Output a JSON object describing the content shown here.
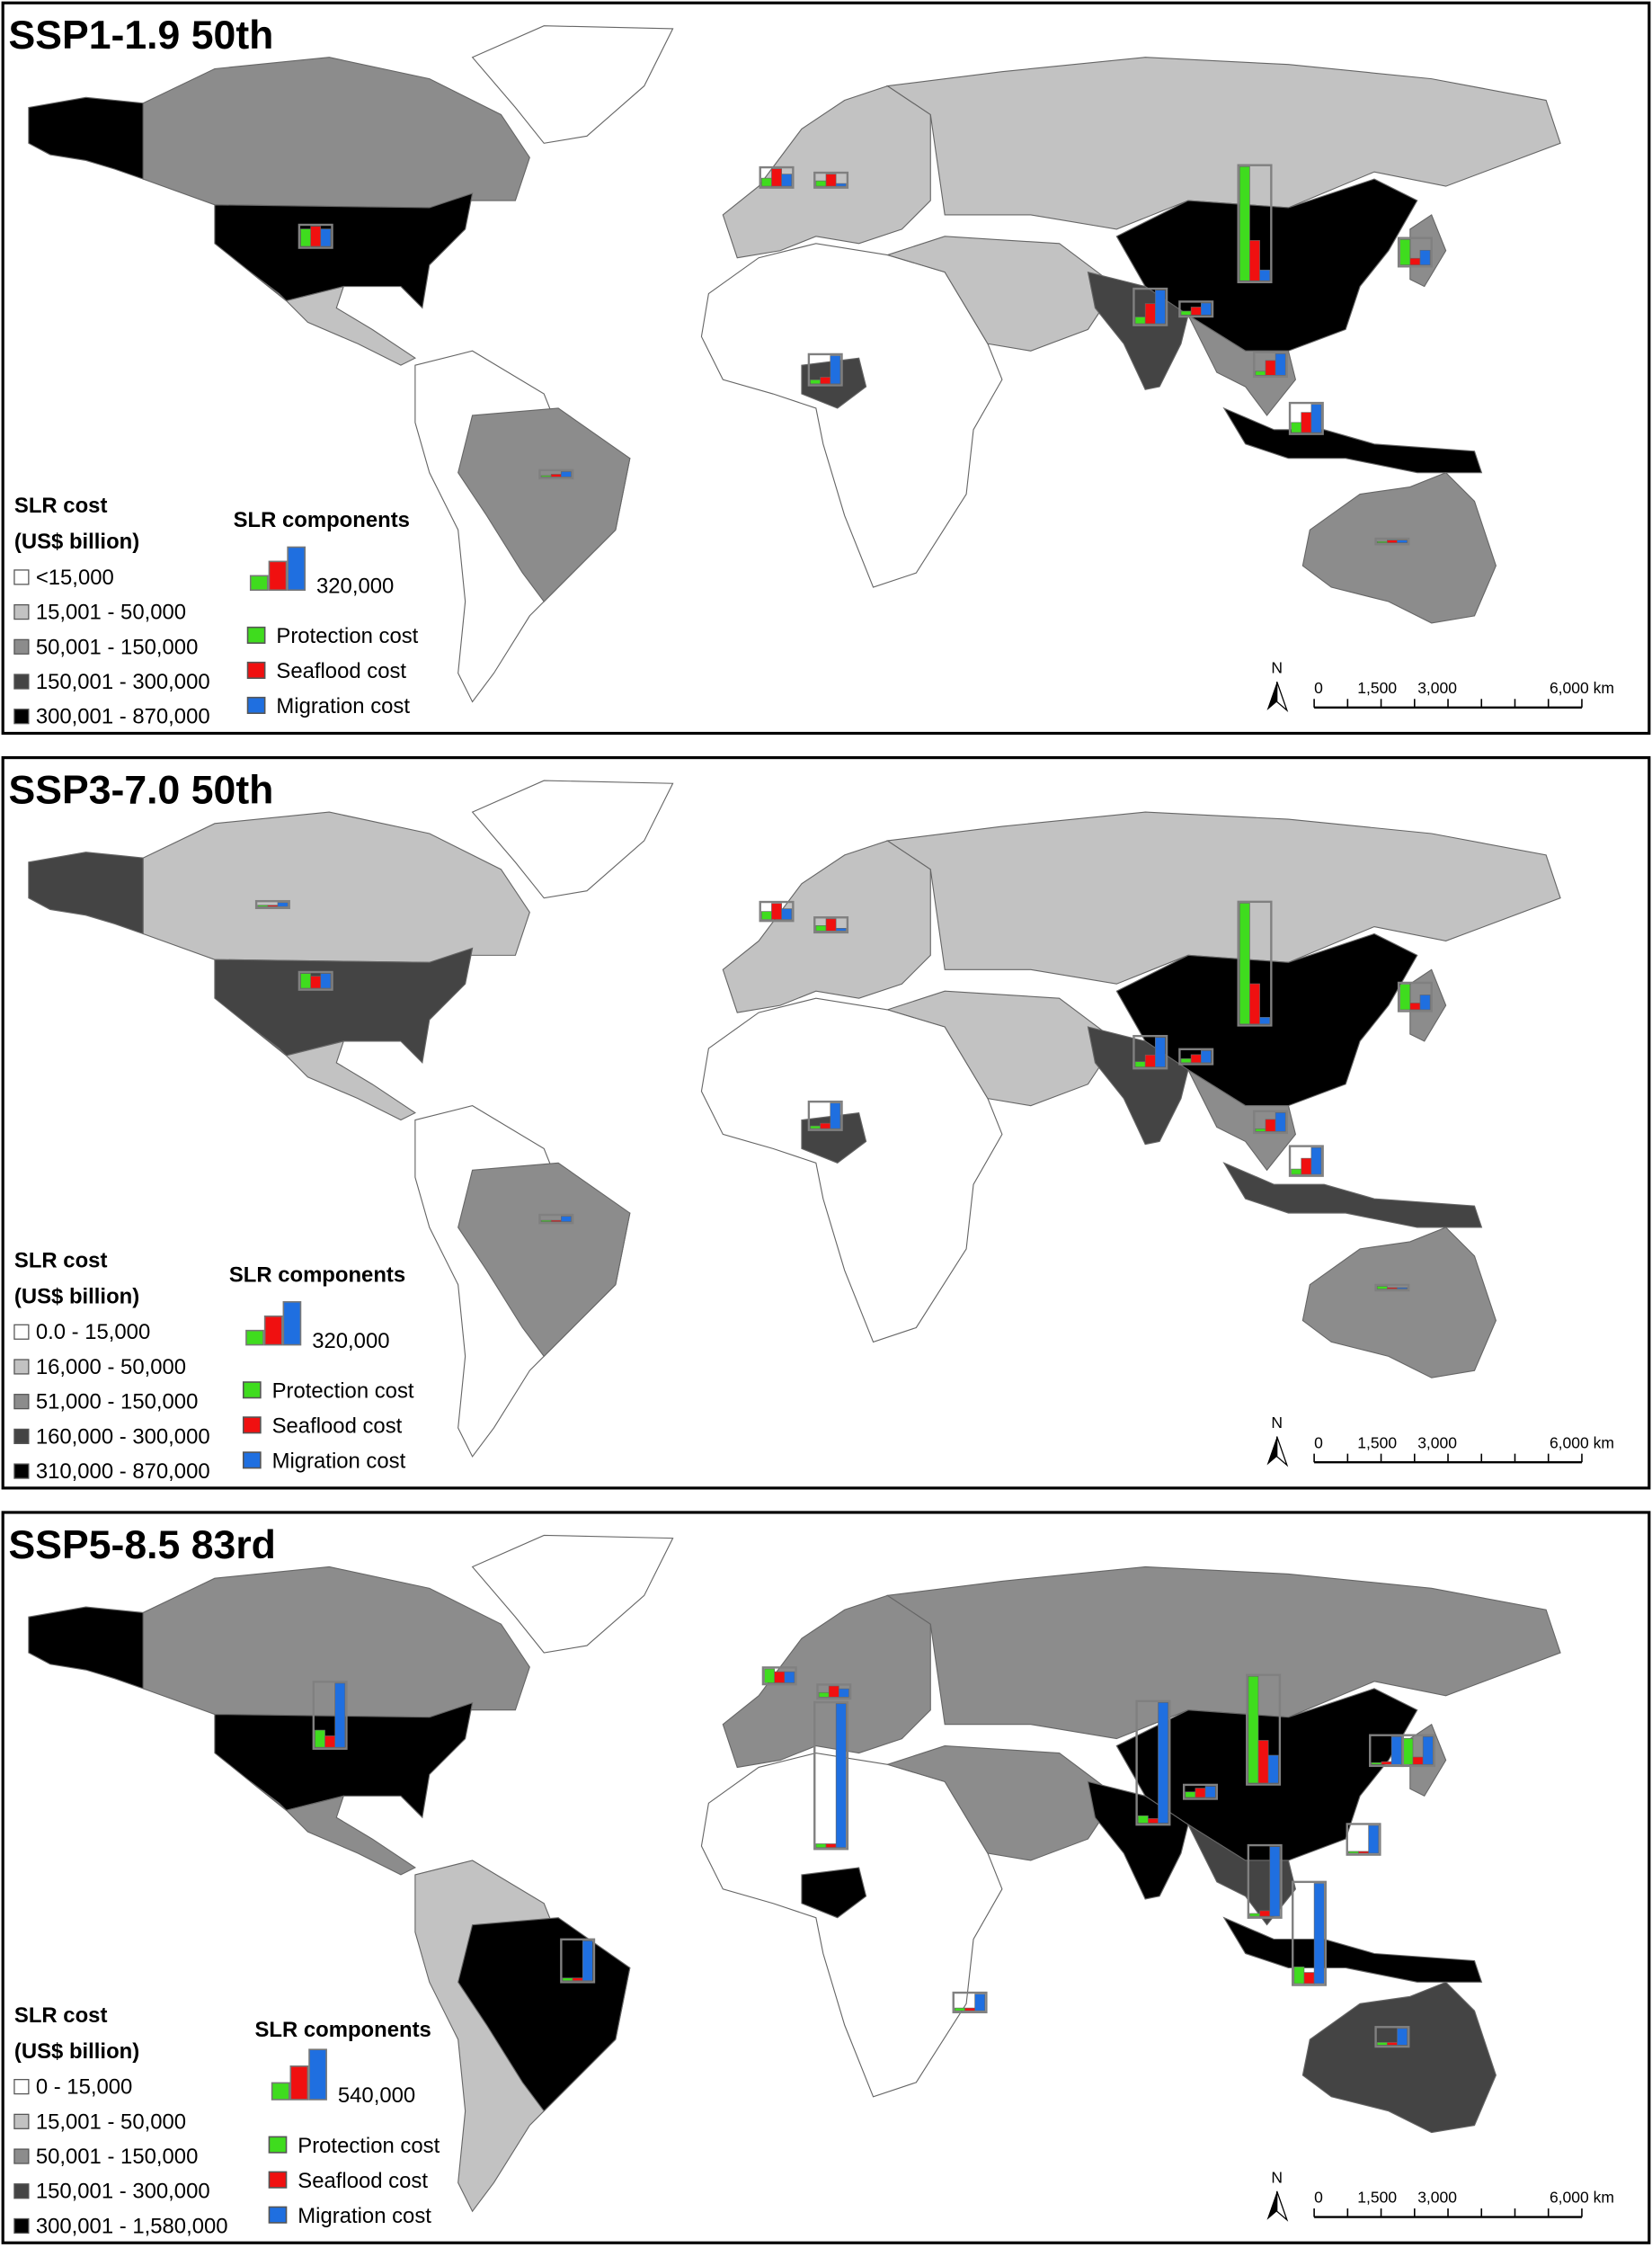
{
  "panels": [
    {
      "title": "SSP1-1.9 50th",
      "legend": {
        "title_line1": "SLR cost",
        "title_line2": "(US$ billion)",
        "classes": [
          {
            "label": "<15,000",
            "color": "#ffffff"
          },
          {
            "label": "15,001 - 50,000",
            "color": "#c2c2c2"
          },
          {
            "label": "50,001 - 150,000",
            "color": "#8c8c8c"
          },
          {
            "label": "150,001 - 300,000",
            "color": "#444444"
          },
          {
            "label": "300,001 - 870,000",
            "color": "#000000"
          }
        ]
      },
      "components": {
        "title": "SLR components",
        "scale": {
          "value": 320000,
          "label": "320,000"
        },
        "items": [
          {
            "label": "Protection cost",
            "color": "#3fdc1e"
          },
          {
            "label": "Seaflood cost",
            "color": "#f01010"
          },
          {
            "label": "Migration cost",
            "color": "#1f6fe0"
          }
        ]
      },
      "scalebar": [
        "0",
        "1,500",
        "3,000",
        "6,000 km"
      ],
      "north": "N",
      "region_classes": [
        4,
        2,
        4,
        1,
        0,
        0,
        2,
        1,
        0,
        3,
        1,
        1,
        4,
        3,
        2,
        4,
        2,
        2
      ],
      "bars": [
        [
          130000,
          150000,
          130000
        ],
        [
          850000,
          300000,
          80000
        ],
        [
          50000,
          150000,
          250000
        ],
        [
          30000,
          50000,
          210000
        ],
        [
          190000,
          50000,
          110000
        ],
        [
          75000,
          150000,
          210000
        ],
        [
          30000,
          110000,
          160000
        ],
        [
          10000,
          20000,
          40000
        ],
        [
          10000,
          20000,
          20000
        ],
        [
          60000,
          130000,
          90000
        ],
        [
          40000,
          90000,
          20000
        ],
        [
          30000,
          60000,
          90000
        ]
      ]
    },
    {
      "title": "SSP3-7.0 50th",
      "legend": {
        "title_line1": "SLR cost",
        "title_line2": "(US$ billion)",
        "classes": [
          {
            "label": "0.0 - 15,000",
            "color": "#ffffff"
          },
          {
            "label": "16,000 - 50,000",
            "color": "#c2c2c2"
          },
          {
            "label": "51,000 - 150,000",
            "color": "#8c8c8c"
          },
          {
            "label": "160,000 - 300,000",
            "color": "#444444"
          },
          {
            "label": "310,000 - 870,000",
            "color": "#000000"
          }
        ]
      },
      "components": {
        "title": "SLR components",
        "scale": {
          "value": 320000,
          "label": "320,000"
        },
        "items": [
          {
            "label": "Protection cost",
            "color": "#3fdc1e"
          },
          {
            "label": "Seaflood cost",
            "color": "#f01010"
          },
          {
            "label": "Migration cost",
            "color": "#1f6fe0"
          }
        ]
      },
      "scalebar": [
        "0",
        "1,500",
        "3,000",
        "6,000 km"
      ],
      "north": "N",
      "region_classes": [
        3,
        1,
        3,
        1,
        0,
        0,
        2,
        1,
        0,
        3,
        1,
        1,
        4,
        3,
        2,
        3,
        2,
        2
      ],
      "bars": [
        [
          110000,
          90000,
          110000
        ],
        [
          900000,
          300000,
          50000
        ],
        [
          40000,
          90000,
          220000
        ],
        [
          20000,
          40000,
          190000
        ],
        [
          190000,
          50000,
          110000
        ],
        [
          40000,
          120000,
          200000
        ],
        [
          20000,
          90000,
          140000
        ],
        [
          10000,
          10000,
          40000
        ],
        [
          20000,
          10000,
          10000
        ],
        [
          60000,
          120000,
          80000
        ],
        [
          40000,
          90000,
          20000
        ],
        [
          30000,
          60000,
          90000
        ],
        [
          10000,
          10000,
          30000
        ]
      ]
    },
    {
      "title": "SSP5-8.5 83rd",
      "legend": {
        "title_line1": "SLR cost",
        "title_line2": "(US$ billion)",
        "classes": [
          {
            "label": "0 - 15,000",
            "color": "#ffffff"
          },
          {
            "label": "15,001 - 50,000",
            "color": "#c2c2c2"
          },
          {
            "label": "50,001 - 150,000",
            "color": "#8c8c8c"
          },
          {
            "label": "150,001 - 300,000",
            "color": "#444444"
          },
          {
            "label": "300,001 - 1,580,000",
            "color": "#000000"
          }
        ]
      },
      "components": {
        "title": "SLR components",
        "scale": {
          "value": 540000,
          "label": "540,000"
        },
        "items": [
          {
            "label": "Protection cost",
            "color": "#3fdc1e"
          },
          {
            "label": "Seaflood cost",
            "color": "#f01010"
          },
          {
            "label": "Migration cost",
            "color": "#1f6fe0"
          }
        ]
      },
      "scalebar": [
        "0",
        "1,500",
        "3,000",
        "6,000 km"
      ],
      "north": "N",
      "region_classes": [
        4,
        2,
        4,
        2,
        0,
        1,
        4,
        2,
        0,
        4,
        2,
        2,
        4,
        4,
        3,
        4,
        3,
        2
      ],
      "bars": [
        [
          185000,
          123000,
          690000
        ],
        [
          1150000,
          460000,
          300000
        ],
        [
          80000,
          50000,
          1300000
        ],
        [
          40000,
          40000,
          1550000
        ],
        [
          280000,
          80000,
          300000
        ],
        [
          180000,
          120000,
          1080000
        ],
        [
          30000,
          60000,
          750000
        ],
        [
          30000,
          30000,
          430000
        ],
        [
          30000,
          30000,
          180000
        ],
        [
          150000,
          120000,
          120000
        ],
        [
          50000,
          120000,
          90000
        ],
        [
          60000,
          100000,
          120000
        ],
        [
          30000,
          30000,
          180000
        ],
        [
          20000,
          30000,
          300000
        ],
        [
          20000,
          20000,
          300000
        ]
      ]
    }
  ]
}
